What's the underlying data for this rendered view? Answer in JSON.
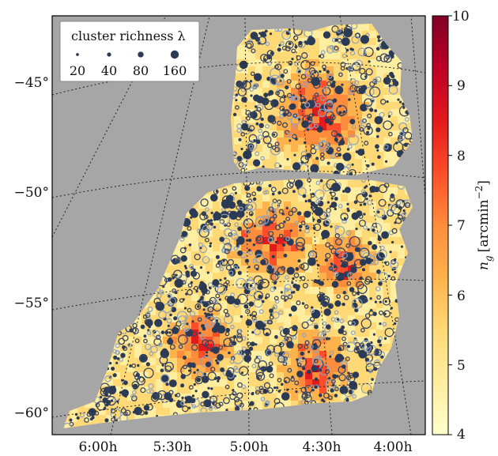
{
  "chart_data": {
    "type": "heatmap",
    "title": "",
    "xlabel": "",
    "ylabel": "",
    "x_ticks": [
      "6:00h",
      "5:30h",
      "5:00h",
      "4:30h",
      "4:00h"
    ],
    "y_ticks": [
      "−45°",
      "−50°",
      "−55°",
      "−60°"
    ],
    "colorbar": {
      "label": "n_g [arcmin⁻²]",
      "label_main": "n",
      "label_sub": "g",
      "label_unit": "[arcmin",
      "label_exp": "−2",
      "label_close": "]",
      "range": [
        4,
        10
      ],
      "ticks": [
        "4",
        "5",
        "6",
        "7",
        "8",
        "9",
        "10"
      ],
      "colormap": "YlOrRd",
      "colors": [
        "#ffffcc",
        "#ffeda0",
        "#fed976",
        "#feb24c",
        "#fd8d3c",
        "#fc4e2a",
        "#e31a1c",
        "#bd0026",
        "#800026"
      ]
    },
    "legend": {
      "title": "cluster richness λ",
      "placement": "top-left",
      "entries": [
        {
          "label": "20",
          "lambda": 20
        },
        {
          "label": "40",
          "lambda": 40
        },
        {
          "label": "80",
          "lambda": 80
        },
        {
          "label": "160",
          "lambda": 160
        }
      ]
    },
    "grid": true,
    "background": "#a6a6a6",
    "marker_colors": {
      "filled": "#2b3a55",
      "open_dark": "#3a4560",
      "open_light": "#8fa3bf"
    },
    "series": [
      {
        "type": "density_map",
        "value_range": [
          4,
          10
        ]
      },
      {
        "type": "cluster_positions",
        "marker": "circle",
        "size_encodes": "richness"
      }
    ]
  }
}
